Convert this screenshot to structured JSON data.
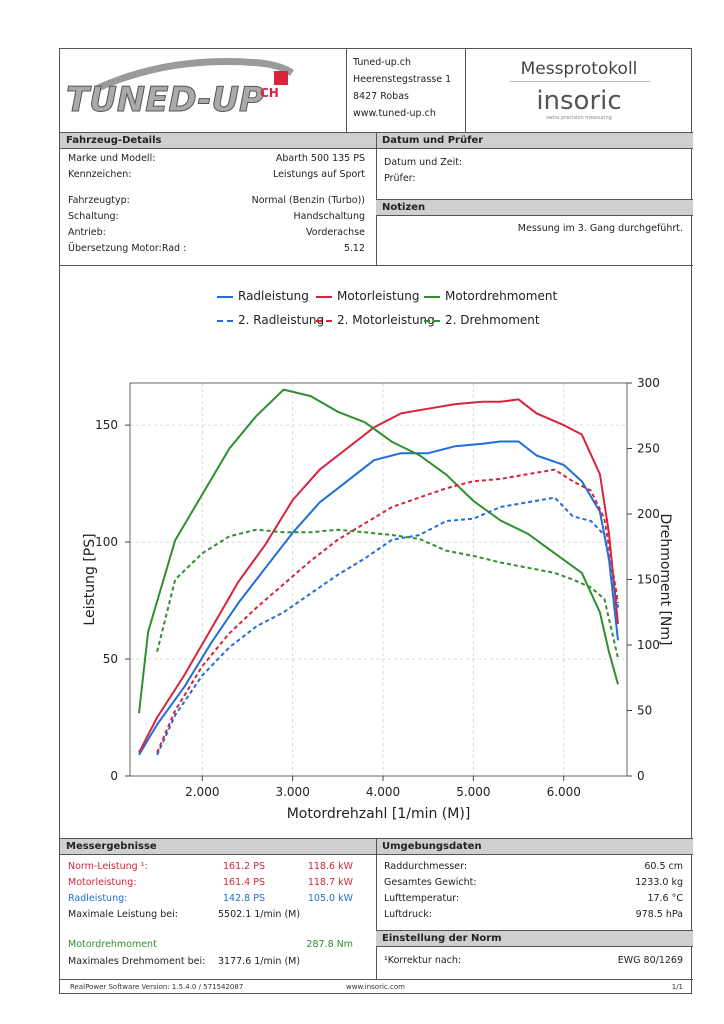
{
  "header": {
    "logo_text": "TUNED-UP",
    "logo_suffix": "CH",
    "company_name": "Tuned-up.ch",
    "address_street": "Heerenstegstrasse 1",
    "address_city": "8427 Robas",
    "website": "www.tuned-up.ch",
    "protocol_title": "Messprotokoll",
    "brand_name": "insoric",
    "brand_tagline": "swiss precision measuring"
  },
  "vehicle": {
    "title": "Fahrzeug-Details",
    "rows": [
      {
        "label": "Marke und Modell:",
        "value": "Abarth 500 135 PS"
      },
      {
        "label": "Kennzeichen:",
        "value": "Leistungs auf Sport"
      },
      {
        "label": "Fahrzeugtyp:",
        "value": "Normal (Benzin (Turbo))"
      },
      {
        "label": "Schaltung:",
        "value": "Handschaltung"
      },
      {
        "label": "Antrieb:",
        "value": "Vorderachse"
      },
      {
        "label": "Übersetzung Motor:Rad :",
        "value": "5.12"
      }
    ]
  },
  "date": {
    "title": "Datum und Prüfer",
    "date_label": "Datum und Zeit:",
    "tester_label": "Prüfer:"
  },
  "notes": {
    "title": "Notizen",
    "text": "Messung im 3. Gang durchgeführt."
  },
  "results": {
    "title": "Messergebnisse",
    "norm_label": "Norm-Leistung ¹:",
    "norm_ps": "161.2 PS",
    "norm_kw": "118.6 kW",
    "motor_label": "Motorleistung:",
    "motor_ps": "161.4 PS",
    "motor_kw": "118.7 kW",
    "rad_label": "Radleistung:",
    "rad_ps": "142.8 PS",
    "rad_kw": "105.0 kW",
    "maxpow_label": "Maximale Leistung bei:",
    "maxpow_value": "5502.1 1/min (M)",
    "torque_label": "Motordrehmoment",
    "torque_value": "287.8 Nm",
    "maxtorque_label": "Maximales Drehmoment bei:",
    "maxtorque_value": "3177.6 1/min (M)"
  },
  "environment": {
    "title": "Umgebungsdaten",
    "rows": [
      {
        "label": "Raddurchmesser:",
        "value": "60.5 cm"
      },
      {
        "label": "Gesamtes Gewicht:",
        "value": "1233.0 kg"
      },
      {
        "label": "Lufttemperatur:",
        "value": "17.6 °C"
      },
      {
        "label": "Luftdruck:",
        "value": "978.5 hPa"
      }
    ]
  },
  "norm": {
    "title": "Einstellung der Norm",
    "label": "¹Korrektur nach:",
    "value": "EWG 80/1269"
  },
  "footer": {
    "software": "RealPower Software Version: 1.5.4.0 / 571542087",
    "site": "www.insoric.com",
    "page": "1/1"
  },
  "colors": {
    "rad": "#1e6fd9",
    "motor": "#d6243c",
    "torque": "#2f8f2f"
  },
  "chart_data": {
    "type": "line",
    "xlabel": "Motordrehzahl [1/min (M)]",
    "ylabel": "Leistung [PS]",
    "y2label": "Drehmoment [Nm]",
    "xlim": [
      1200,
      6700
    ],
    "ylim": [
      0,
      168
    ],
    "y2lim": [
      0,
      300
    ],
    "x_ticks": [
      2000,
      3000,
      4000,
      5000,
      6000
    ],
    "x_tick_labels": [
      "2.000",
      "3.000",
      "4.000",
      "5.000",
      "6.000"
    ],
    "y_ticks": [
      0,
      50,
      100,
      150
    ],
    "y_tick_labels": [
      "0",
      "50",
      "100",
      "150"
    ],
    "y2_ticks": [
      0,
      50,
      100,
      150,
      200,
      250,
      300
    ],
    "y2_tick_labels": [
      "0",
      "50",
      "100",
      "150",
      "200",
      "250",
      "300"
    ],
    "grid": true,
    "legend": "top",
    "series": [
      {
        "name": "Radleistung",
        "axis": "left",
        "style": "solid",
        "color": "#1e6fd9",
        "x": [
          1300,
          1500,
          1800,
          2100,
          2400,
          2700,
          3000,
          3300,
          3600,
          3900,
          4200,
          4500,
          4800,
          5100,
          5300,
          5500,
          5700,
          6000,
          6200,
          6400,
          6500,
          6600
        ],
        "y": [
          9,
          22,
          38,
          57,
          74,
          89,
          104,
          117,
          126,
          135,
          138,
          138,
          141,
          142,
          143,
          143,
          137,
          133,
          126,
          113,
          93,
          58
        ]
      },
      {
        "name": "Motorleistung",
        "axis": "left",
        "style": "solid",
        "color": "#d6243c",
        "x": [
          1300,
          1500,
          1800,
          2100,
          2400,
          2700,
          3000,
          3300,
          3600,
          3900,
          4200,
          4500,
          4800,
          5100,
          5300,
          5500,
          5700,
          6000,
          6200,
          6400,
          6500,
          6600
        ],
        "y": [
          10,
          25,
          43,
          63,
          83,
          99,
          118,
          131,
          140,
          149,
          155,
          157,
          159,
          160,
          160,
          161,
          155,
          150,
          146,
          129,
          104,
          65
        ]
      },
      {
        "name": "Motordrehmoment",
        "axis": "right",
        "style": "solid",
        "color": "#2f8f2f",
        "x": [
          1300,
          1400,
          1700,
          2000,
          2300,
          2600,
          2900,
          3200,
          3500,
          3800,
          4100,
          4400,
          4700,
          5000,
          5300,
          5600,
          5900,
          6200,
          6400,
          6500,
          6600
        ],
        "y": [
          48,
          110,
          180,
          215,
          250,
          275,
          295,
          290,
          278,
          270,
          255,
          245,
          230,
          210,
          195,
          185,
          170,
          155,
          125,
          95,
          70
        ]
      },
      {
        "name": "2. Radleistung",
        "axis": "left",
        "style": "dashed",
        "color": "#1e6fd9",
        "x": [
          1500,
          1700,
          2000,
          2300,
          2600,
          2900,
          3200,
          3500,
          3800,
          4100,
          4400,
          4700,
          5000,
          5300,
          5600,
          5900,
          6100,
          6300,
          6450,
          6600
        ],
        "y": [
          9,
          26,
          43,
          55,
          64,
          70,
          78,
          86,
          93,
          101,
          103,
          109,
          110,
          115,
          117,
          119,
          111,
          109,
          103,
          72
        ]
      },
      {
        "name": "2. Motorleistung",
        "axis": "left",
        "style": "dashed",
        "color": "#d6243c",
        "x": [
          1500,
          1700,
          2000,
          2300,
          2600,
          2900,
          3200,
          3500,
          3800,
          4100,
          4400,
          4700,
          5000,
          5300,
          5600,
          5900,
          6100,
          6300,
          6450,
          6600
        ],
        "y": [
          10,
          28,
          47,
          61,
          72,
          82,
          92,
          101,
          108,
          115,
          119,
          123,
          126,
          127,
          129,
          131,
          126,
          122,
          110,
          74
        ]
      },
      {
        "name": "2. Drehmoment",
        "axis": "right",
        "style": "dashed",
        "color": "#2f8f2f",
        "x": [
          1500,
          1700,
          2000,
          2300,
          2600,
          2900,
          3200,
          3500,
          3800,
          4100,
          4400,
          4700,
          5000,
          5300,
          5600,
          5900,
          6100,
          6300,
          6450,
          6600
        ],
        "y": [
          95,
          150,
          170,
          183,
          188,
          186,
          186,
          188,
          186,
          184,
          181,
          172,
          168,
          163,
          159,
          155,
          150,
          144,
          135,
          90
        ]
      }
    ]
  }
}
